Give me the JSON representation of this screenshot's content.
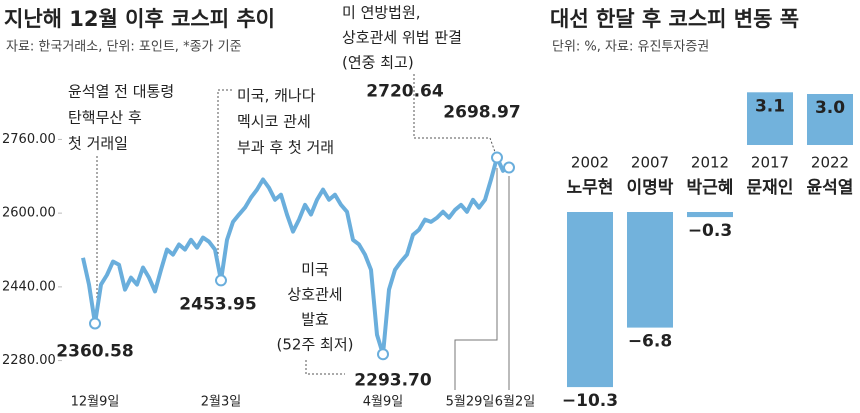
{
  "chart_data": [
    {
      "type": "line",
      "title": "지난해 12월 이후 코스피 추이",
      "subtitle": "자료: 한국거래소, 단위: 포인트, *종가 기준",
      "annotations": [
        [
          "윤석열 전 대통령",
          "탄핵무산 후",
          "첫 거래일"
        ],
        [
          "미국, 캐나다",
          "멕시코 관세",
          "부과 후 첫 거래"
        ],
        [
          "미 연방법원,",
          "상호관세 위법 판결",
          "(연중 최고)"
        ],
        [
          "미국",
          "상호관세",
          "발효",
          "(52주 최저)"
        ]
      ],
      "categories": [
        null,
        null,
        "12월9일",
        null,
        null,
        null,
        null,
        null,
        null,
        null,
        null,
        null,
        null,
        null,
        null,
        null,
        null,
        null,
        null,
        null,
        null,
        null,
        null,
        "2월3일",
        null,
        null,
        null,
        null,
        null,
        null,
        null,
        null,
        null,
        null,
        null,
        null,
        null,
        null,
        null,
        null,
        null,
        null,
        null,
        null,
        null,
        null,
        null,
        null,
        null,
        null,
        "4월9일",
        null,
        null,
        null,
        null,
        null,
        null,
        null,
        null,
        null,
        null,
        null,
        null,
        null,
        null,
        null,
        null,
        null,
        null,
        "5월29일",
        null,
        "6월2일"
      ],
      "series": [
        {
          "color": "#6aaedc",
          "values": [
            2503,
            2445,
            2360.58,
            2445,
            2466,
            2495,
            2488,
            2434,
            2460,
            2445,
            2482,
            2460,
            2430,
            2477,
            2521,
            2510,
            2532,
            2521,
            2542,
            2525,
            2547,
            2538,
            2521,
            2453.95,
            2542,
            2581,
            2597,
            2612,
            2634,
            2651,
            2673,
            2655,
            2629,
            2640,
            2597,
            2560,
            2586,
            2618,
            2597,
            2629,
            2651,
            2629,
            2640,
            2618,
            2603,
            2542,
            2532,
            2510,
            2477,
            2336,
            2293.7,
            2434,
            2477,
            2495,
            2510,
            2553,
            2564,
            2586,
            2581,
            2590,
            2603,
            2590,
            2607,
            2618,
            2603,
            2629,
            2612,
            2629,
            2673,
            2720.64,
            2692,
            2698.97
          ],
          "value_labels": [
            null,
            null,
            "2360.58",
            null,
            null,
            null,
            null,
            null,
            null,
            null,
            null,
            null,
            null,
            null,
            null,
            null,
            null,
            null,
            null,
            null,
            null,
            null,
            null,
            "2453.95",
            null,
            null,
            null,
            null,
            null,
            null,
            null,
            null,
            null,
            null,
            null,
            null,
            null,
            null,
            null,
            null,
            null,
            null,
            null,
            null,
            null,
            null,
            null,
            null,
            null,
            null,
            "2293.70",
            null,
            null,
            null,
            null,
            null,
            null,
            null,
            null,
            null,
            null,
            null,
            null,
            null,
            null,
            null,
            null,
            null,
            null,
            "2720.64",
            null,
            "2698.97"
          ]
        }
      ],
      "ylim": [
        2240,
        2800
      ],
      "yticks": [
        {
          "value": 2280,
          "label": "2280.00"
        },
        {
          "value": 2440,
          "label": "2440.00"
        },
        {
          "value": 2600,
          "label": "2600.00"
        },
        {
          "value": 2760,
          "label": "2760.00"
        }
      ]
    },
    {
      "type": "bar",
      "title": "대선 한달 후 코스피 변동 폭",
      "subtitle": "단위: %, 자료: 유진투자증권",
      "categories": [
        [
          "2002",
          "노무현"
        ],
        [
          "2007",
          "이명박"
        ],
        [
          "2012",
          "박근혜"
        ],
        [
          "2017",
          "문재인"
        ],
        [
          "2022",
          "윤석열"
        ]
      ],
      "color": "#72b2dc",
      "values": [
        -10.3,
        -6.8,
        -0.3,
        3.1,
        3.0
      ],
      "value_labels": [
        "−10.3",
        "−6.8",
        "−0.3",
        "3.1",
        "3.0"
      ]
    }
  ]
}
